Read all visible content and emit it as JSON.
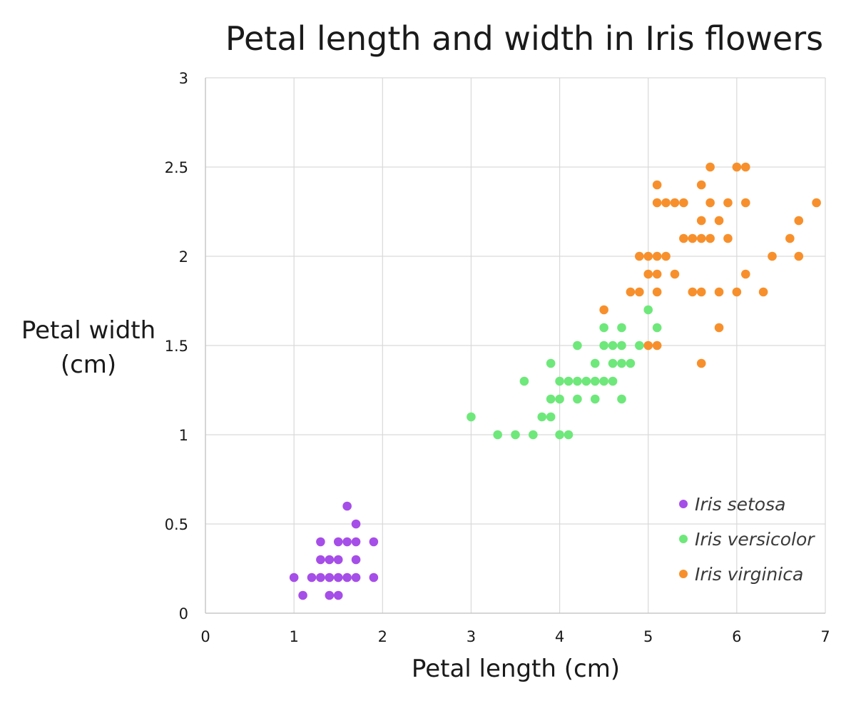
{
  "chart_data": {
    "type": "scatter",
    "title": "Petal length and width in Iris flowers",
    "xlabel": "Petal length (cm)",
    "ylabel_lines": [
      "Petal width",
      "(cm)"
    ],
    "xlim": [
      0,
      7
    ],
    "ylim": [
      0,
      3
    ],
    "x_ticks": [
      "0",
      "1",
      "2",
      "3",
      "4",
      "5",
      "6",
      "7"
    ],
    "y_ticks": [
      "0",
      "0.5",
      "1",
      "1.5",
      "2",
      "2.5",
      "3"
    ],
    "grid": true,
    "legend_position": "bottom-right",
    "series": [
      {
        "name": "Iris setosa",
        "color": "#a64ee8",
        "points": [
          [
            1.0,
            0.2
          ],
          [
            1.1,
            0.1
          ],
          [
            1.2,
            0.2
          ],
          [
            1.3,
            0.2
          ],
          [
            1.3,
            0.3
          ],
          [
            1.3,
            0.4
          ],
          [
            1.4,
            0.1
          ],
          [
            1.4,
            0.2
          ],
          [
            1.4,
            0.3
          ],
          [
            1.5,
            0.1
          ],
          [
            1.5,
            0.2
          ],
          [
            1.5,
            0.3
          ],
          [
            1.5,
            0.4
          ],
          [
            1.6,
            0.2
          ],
          [
            1.6,
            0.4
          ],
          [
            1.6,
            0.6
          ],
          [
            1.7,
            0.2
          ],
          [
            1.7,
            0.3
          ],
          [
            1.7,
            0.4
          ],
          [
            1.7,
            0.5
          ],
          [
            1.9,
            0.2
          ],
          [
            1.9,
            0.4
          ]
        ]
      },
      {
        "name": "Iris versicolor",
        "color": "#6ee87a",
        "points": [
          [
            3.0,
            1.1
          ],
          [
            3.3,
            1.0
          ],
          [
            3.5,
            1.0
          ],
          [
            3.6,
            1.3
          ],
          [
            3.7,
            1.0
          ],
          [
            3.8,
            1.1
          ],
          [
            3.9,
            1.1
          ],
          [
            3.9,
            1.2
          ],
          [
            3.9,
            1.4
          ],
          [
            4.0,
            1.0
          ],
          [
            4.0,
            1.2
          ],
          [
            4.0,
            1.3
          ],
          [
            4.1,
            1.0
          ],
          [
            4.1,
            1.3
          ],
          [
            4.2,
            1.2
          ],
          [
            4.2,
            1.3
          ],
          [
            4.2,
            1.5
          ],
          [
            4.3,
            1.3
          ],
          [
            4.4,
            1.2
          ],
          [
            4.4,
            1.3
          ],
          [
            4.4,
            1.4
          ],
          [
            4.5,
            1.3
          ],
          [
            4.5,
            1.5
          ],
          [
            4.5,
            1.6
          ],
          [
            4.6,
            1.3
          ],
          [
            4.6,
            1.4
          ],
          [
            4.6,
            1.5
          ],
          [
            4.7,
            1.2
          ],
          [
            4.7,
            1.4
          ],
          [
            4.7,
            1.5
          ],
          [
            4.7,
            1.6
          ],
          [
            4.8,
            1.4
          ],
          [
            4.9,
            1.5
          ],
          [
            5.0,
            1.7
          ],
          [
            5.1,
            1.6
          ]
        ]
      },
      {
        "name": "Iris virginica",
        "color": "#f7902c",
        "points": [
          [
            4.5,
            1.7
          ],
          [
            4.8,
            1.8
          ],
          [
            4.9,
            1.8
          ],
          [
            4.9,
            2.0
          ],
          [
            5.0,
            1.5
          ],
          [
            5.0,
            1.9
          ],
          [
            5.0,
            2.0
          ],
          [
            5.1,
            1.5
          ],
          [
            5.1,
            1.8
          ],
          [
            5.1,
            1.9
          ],
          [
            5.1,
            2.0
          ],
          [
            5.1,
            2.3
          ],
          [
            5.1,
            2.4
          ],
          [
            5.2,
            2.0
          ],
          [
            5.2,
            2.3
          ],
          [
            5.3,
            1.9
          ],
          [
            5.3,
            2.3
          ],
          [
            5.4,
            2.1
          ],
          [
            5.4,
            2.3
          ],
          [
            5.5,
            1.8
          ],
          [
            5.5,
            2.1
          ],
          [
            5.6,
            1.4
          ],
          [
            5.6,
            1.8
          ],
          [
            5.6,
            2.1
          ],
          [
            5.6,
            2.2
          ],
          [
            5.6,
            2.4
          ],
          [
            5.7,
            2.1
          ],
          [
            5.7,
            2.3
          ],
          [
            5.7,
            2.5
          ],
          [
            5.8,
            1.6
          ],
          [
            5.8,
            1.8
          ],
          [
            5.8,
            2.2
          ],
          [
            5.9,
            2.1
          ],
          [
            5.9,
            2.3
          ],
          [
            6.0,
            1.8
          ],
          [
            6.0,
            2.5
          ],
          [
            6.1,
            1.9
          ],
          [
            6.1,
            2.3
          ],
          [
            6.1,
            2.5
          ],
          [
            6.3,
            1.8
          ],
          [
            6.4,
            2.0
          ],
          [
            6.6,
            2.1
          ],
          [
            6.7,
            2.0
          ],
          [
            6.7,
            2.2
          ],
          [
            6.9,
            2.3
          ]
        ]
      }
    ]
  }
}
